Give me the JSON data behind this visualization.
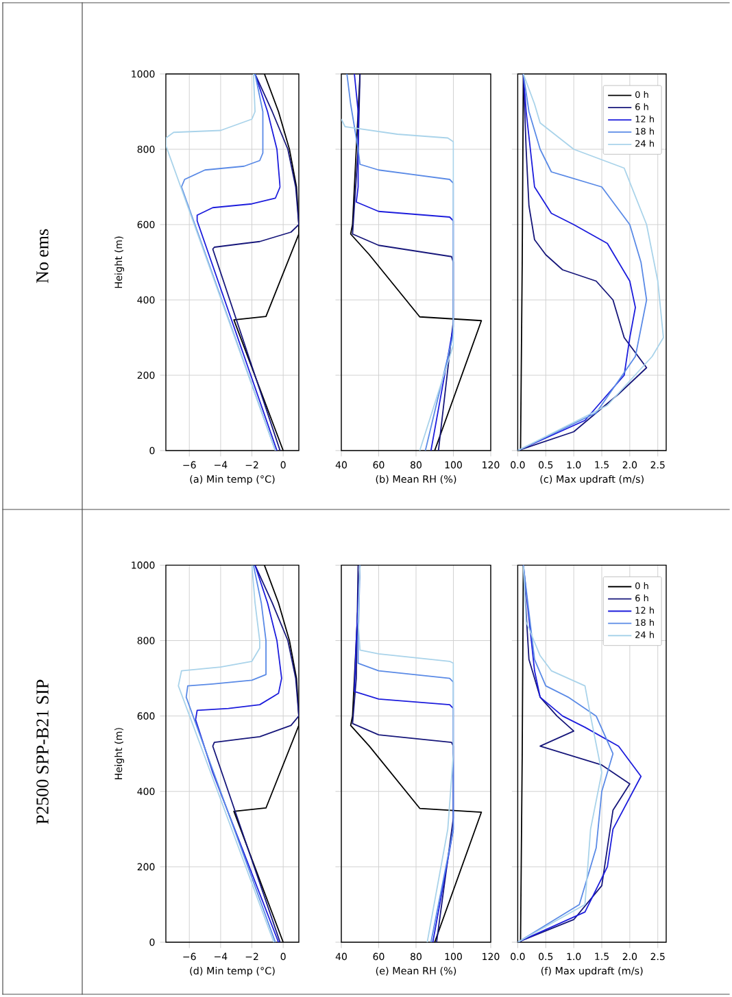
{
  "chart_data": [
    {
      "type": "line",
      "xlabel": "(a) Min temp (°C)",
      "ylabel": "Height (m)",
      "annotations": [
        "No ems"
      ],
      "xlim": [
        -7.5,
        1.0
      ],
      "ylim": [
        0,
        1000
      ],
      "xticks": [
        {
          "value": -6,
          "label": "−6"
        },
        {
          "value": -4,
          "label": "−4"
        },
        {
          "value": -2,
          "label": "−2"
        },
        0
      ],
      "yticks": [
        0,
        200,
        400,
        600,
        800,
        1000
      ],
      "grid": true,
      "marker": "none",
      "line_style": "solid",
      "series": [
        {
          "color": "#000000",
          "x": [
            0,
            -3.15,
            -1.1,
            1.0,
            1.0,
            0.85,
            0.4,
            -0.3,
            -1.2
          ],
          "values": [
            0,
            347,
            356,
            575,
            600,
            700,
            800,
            900,
            1000
          ]
        },
        {
          "color": "#16167a",
          "x": [
            -0.2,
            -4.5,
            -4.4,
            -2.5,
            -1.5,
            0.5,
            1.0,
            0.8,
            0.3,
            -0.7,
            -1.8
          ],
          "values": [
            0,
            535,
            540,
            550,
            555,
            580,
            600,
            700,
            800,
            900,
            1000
          ]
        },
        {
          "color": "#1c1cdc",
          "x": [
            -0.4,
            -5.5,
            -5.5,
            -4.5,
            -2,
            -0.5,
            -0.2,
            -0.4,
            -1.0,
            -1.8
          ],
          "values": [
            0,
            610,
            625,
            645,
            655,
            670,
            700,
            800,
            900,
            1000
          ]
        },
        {
          "color": "#5a8ae6",
          "x": [
            -0.5,
            -6.5,
            -6.3,
            -5,
            -2.5,
            -1.5,
            -1.3,
            -1.3,
            -1.8
          ],
          "values": [
            0,
            700,
            720,
            745,
            755,
            770,
            790,
            900,
            1000
          ]
        },
        {
          "color": "#a9d3ea",
          "x": [
            -0.5,
            -7.5,
            -7.5,
            -7.0,
            -4,
            -2,
            -1.8,
            -1.9
          ],
          "values": [
            0,
            810,
            830,
            845,
            850,
            880,
            900,
            1000
          ]
        }
      ]
    },
    {
      "type": "line",
      "xlabel": "(b) Mean RH (%)",
      "xlim": [
        40,
        120
      ],
      "ylim": [
        0,
        1000
      ],
      "xticks": [
        40,
        60,
        80,
        100,
        120
      ],
      "yticks": [
        0,
        200,
        400,
        600,
        800,
        1000
      ],
      "tick_labels": "x",
      "grid": true,
      "marker": "none",
      "line_style": "solid",
      "series": [
        {
          "color": "#000000",
          "x": [
            90,
            115,
            82,
            55,
            45,
            46,
            48,
            50
          ],
          "values": [
            0,
            345,
            355,
            520,
            575,
            600,
            800,
            1000
          ]
        },
        {
          "color": "#16167a",
          "x": [
            92,
            100,
            100,
            99,
            60,
            46,
            47,
            49,
            50
          ],
          "values": [
            0,
            345,
            500,
            515,
            545,
            575,
            650,
            800,
            1000
          ]
        },
        {
          "color": "#1c1cdc",
          "x": [
            88,
            100,
            100,
            98,
            60,
            48,
            49,
            49,
            47
          ],
          "values": [
            0,
            330,
            610,
            620,
            635,
            660,
            700,
            900,
            1000
          ]
        },
        {
          "color": "#5a8ae6",
          "x": [
            85,
            100,
            100,
            98,
            60,
            50,
            49,
            45,
            43
          ],
          "values": [
            0,
            310,
            710,
            720,
            745,
            760,
            800,
            920,
            1000
          ]
        },
        {
          "color": "#a9d3ea",
          "x": [
            82,
            100,
            100,
            97,
            70,
            42,
            40
          ],
          "values": [
            0,
            280,
            820,
            830,
            840,
            860,
            880
          ]
        }
      ]
    },
    {
      "type": "line",
      "xlabel": "(c) Max updraft (m/s)",
      "xlim": [
        0,
        2.65
      ],
      "ylim": [
        0,
        1000
      ],
      "xticks": [
        {
          "value": 0,
          "label": "0.0"
        },
        {
          "value": 0.5,
          "label": "0.5"
        },
        {
          "value": 1,
          "label": "1.0"
        },
        {
          "value": 1.5,
          "label": "1.5"
        },
        {
          "value": 2,
          "label": "2.0"
        },
        {
          "value": 2.5,
          "label": "2.5"
        }
      ],
      "yticks": [
        0,
        200,
        400,
        600,
        800,
        1000
      ],
      "tick_labels": "x",
      "grid": true,
      "legend": "top right",
      "marker": "none",
      "line_style": "solid",
      "series": [
        {
          "name": "0 h",
          "color": "#000000",
          "x": [
            0.05,
            0.08,
            0.1
          ],
          "values": [
            0,
            500,
            1000
          ]
        },
        {
          "name": "6 h",
          "color": "#16167a",
          "x": [
            0,
            1.0,
            1.8,
            2.3,
            1.9,
            1.7,
            1.4,
            0.8,
            0.5,
            0.3,
            0.2,
            0.15,
            0.1
          ],
          "values": [
            0,
            50,
            150,
            220,
            300,
            400,
            450,
            480,
            520,
            560,
            650,
            800,
            1000
          ]
        },
        {
          "name": "12 h",
          "color": "#1c1cdc",
          "x": [
            0,
            1.2,
            1.9,
            2.0,
            2.1,
            2.0,
            1.6,
            1.0,
            0.6,
            0.3,
            0.15,
            0.1
          ],
          "values": [
            0,
            80,
            200,
            300,
            380,
            450,
            550,
            600,
            630,
            700,
            900,
            1000
          ]
        },
        {
          "name": "18 h",
          "color": "#5a8ae6",
          "x": [
            0,
            1.4,
            2.1,
            2.3,
            2.2,
            2.0,
            1.5,
            0.6,
            0.4,
            0.2,
            0.1
          ],
          "values": [
            0,
            100,
            250,
            400,
            500,
            600,
            700,
            740,
            800,
            900,
            1000
          ]
        },
        {
          "name": "24 h",
          "color": "#a9d3ea",
          "x": [
            0,
            1.6,
            2.4,
            2.6,
            2.5,
            2.3,
            1.9,
            1.0,
            0.4,
            0.3,
            0.1
          ],
          "values": [
            0,
            120,
            250,
            300,
            450,
            600,
            750,
            800,
            870,
            920,
            1000
          ]
        }
      ]
    },
    {
      "type": "line",
      "xlabel": "(d) Min temp (°C)",
      "ylabel": "Height (m)",
      "annotations": [
        "P2500 SPP-B21 SIP"
      ],
      "xlim": [
        -7.5,
        1.0
      ],
      "ylim": [
        0,
        1000
      ],
      "xticks": [
        {
          "value": -6,
          "label": "−6"
        },
        {
          "value": -4,
          "label": "−4"
        },
        {
          "value": -2,
          "label": "−2"
        },
        0
      ],
      "yticks": [
        0,
        200,
        400,
        600,
        800,
        1000
      ],
      "grid": true,
      "marker": "none",
      "line_style": "solid",
      "series": [
        {
          "color": "#000000",
          "x": [
            0,
            -3.15,
            -1.1,
            1.0,
            1.0,
            0.85,
            0.4,
            -0.3,
            -1.2
          ],
          "values": [
            0,
            347,
            356,
            575,
            600,
            700,
            800,
            900,
            1000
          ]
        },
        {
          "color": "#16167a",
          "x": [
            -0.2,
            -4.5,
            -4.4,
            -2.5,
            -1.5,
            0.5,
            1.0,
            0.8,
            0.3,
            -0.7,
            -1.8
          ],
          "values": [
            0,
            520,
            530,
            540,
            545,
            575,
            600,
            700,
            800,
            900,
            1000
          ]
        },
        {
          "color": "#1c1cdc",
          "x": [
            -0.3,
            -4.5,
            -5.6,
            -5.5,
            -3.5,
            -1.5,
            -0.3,
            -0.1,
            -0.4,
            -1,
            -1.8
          ],
          "values": [
            0,
            450,
            590,
            615,
            620,
            630,
            660,
            700,
            800,
            900,
            1000
          ]
        },
        {
          "color": "#5a8ae6",
          "x": [
            -0.5,
            -6.2,
            -6.1,
            -4.5,
            -2,
            -1.1,
            -1.1,
            -1.4,
            -1.9
          ],
          "values": [
            0,
            650,
            680,
            685,
            695,
            710,
            800,
            900,
            1000
          ]
        },
        {
          "color": "#a9d3ea",
          "x": [
            -0.6,
            -6.7,
            -6.5,
            -4,
            -2,
            -1.5,
            -1.5,
            -1.8,
            -2
          ],
          "values": [
            0,
            680,
            720,
            730,
            745,
            780,
            800,
            900,
            1000
          ]
        }
      ]
    },
    {
      "type": "line",
      "xlabel": "(e) Mean RH (%)",
      "xlim": [
        40,
        120
      ],
      "ylim": [
        0,
        1000
      ],
      "xticks": [
        40,
        60,
        80,
        100,
        120
      ],
      "yticks": [
        0,
        200,
        400,
        600,
        800,
        1000
      ],
      "tick_labels": "x",
      "grid": true,
      "marker": "none",
      "line_style": "solid",
      "series": [
        {
          "color": "#000000",
          "x": [
            90,
            115,
            82,
            55,
            45,
            46,
            50
          ],
          "values": [
            0,
            345,
            355,
            520,
            575,
            600,
            1000
          ]
        },
        {
          "color": "#16167a",
          "x": [
            91,
            100,
            100,
            99,
            60,
            46,
            48,
            49
          ],
          "values": [
            0,
            330,
            520,
            530,
            550,
            580,
            700,
            1000
          ]
        },
        {
          "color": "#1c1cdc",
          "x": [
            89,
            100,
            100,
            98,
            60,
            47,
            48,
            50
          ],
          "values": [
            0,
            300,
            620,
            630,
            645,
            665,
            800,
            1000
          ]
        },
        {
          "color": "#5a8ae6",
          "x": [
            88,
            100,
            100,
            98,
            60,
            49,
            49,
            50
          ],
          "values": [
            0,
            300,
            690,
            700,
            720,
            740,
            800,
            1000
          ]
        },
        {
          "color": "#a9d3ea",
          "x": [
            86,
            97,
            100,
            100,
            98,
            60,
            50,
            49,
            50
          ],
          "values": [
            0,
            300,
            500,
            740,
            745,
            765,
            775,
            850,
            1000
          ]
        }
      ]
    },
    {
      "type": "line",
      "xlabel": "(f) Max updraft (m/s)",
      "xlim": [
        0,
        2.65
      ],
      "ylim": [
        0,
        1000
      ],
      "xticks": [
        {
          "value": 0,
          "label": "0.0"
        },
        {
          "value": 0.5,
          "label": "0.5"
        },
        {
          "value": 1,
          "label": "1.0"
        },
        {
          "value": 1.5,
          "label": "1.5"
        },
        {
          "value": 2,
          "label": "2.0"
        },
        {
          "value": 2.5,
          "label": "2.5"
        }
      ],
      "yticks": [
        0,
        200,
        400,
        600,
        800,
        1000
      ],
      "tick_labels": "x",
      "grid": true,
      "legend": "top right",
      "marker": "none",
      "line_style": "solid",
      "series": [
        {
          "name": "0 h",
          "color": "#000000",
          "x": [
            0.05,
            0.08,
            0.1
          ],
          "values": [
            0,
            500,
            1000
          ]
        },
        {
          "name": "6 h",
          "color": "#16167a",
          "x": [
            0,
            1.0,
            1.5,
            1.6,
            1.7,
            2.0,
            1.5,
            0.4,
            1.0,
            0.7,
            0.4,
            0.2,
            0.1
          ],
          "values": [
            0,
            60,
            150,
            250,
            350,
            420,
            470,
            520,
            560,
            600,
            650,
            750,
            1000
          ]
        },
        {
          "name": "12 h",
          "color": "#1c1cdc",
          "x": [
            0,
            1.2,
            1.6,
            1.7,
            2.2,
            1.8,
            1.2,
            0.8,
            0.4,
            0.3,
            0.1
          ],
          "values": [
            0,
            80,
            200,
            300,
            440,
            520,
            570,
            600,
            650,
            720,
            1000
          ]
        },
        {
          "name": "18 h",
          "color": "#5a8ae6",
          "x": [
            0,
            1.1,
            1.4,
            1.5,
            1.7,
            1.4,
            0.9,
            0.5,
            0.3,
            0.1
          ],
          "values": [
            0,
            100,
            250,
            400,
            500,
            600,
            650,
            680,
            750,
            1000
          ]
        },
        {
          "name": "24 h",
          "color": "#a9d3ea",
          "x": [
            0,
            1.2,
            1.3,
            1.5,
            1.3,
            1.2,
            0.6,
            0.4,
            0.15,
            0.1
          ],
          "values": [
            0,
            100,
            300,
            450,
            600,
            680,
            720,
            760,
            850,
            1000
          ]
        }
      ]
    }
  ]
}
